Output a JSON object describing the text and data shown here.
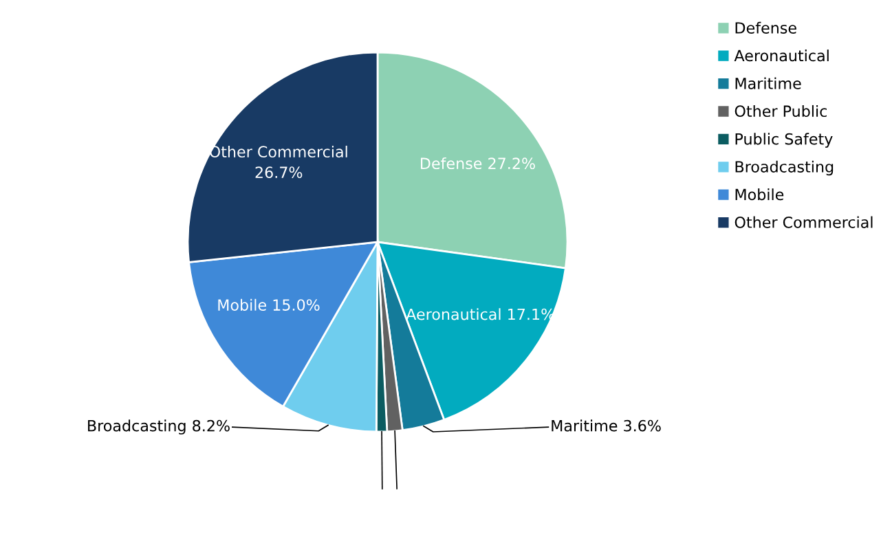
{
  "chart_data": {
    "type": "pie",
    "categories": [
      "Defense",
      "Aeronautical",
      "Maritime",
      "Other Public",
      "Public Safety",
      "Broadcasting",
      "Mobile",
      "Other Commercial"
    ],
    "values": [
      27.2,
      17.1,
      3.6,
      1.3,
      0.9,
      8.2,
      15.0,
      26.7
    ],
    "colors": [
      "#8dd1b3",
      "#02abbf",
      "#147b9a",
      "#616161",
      "#0b5c61",
      "#6fcdee",
      "#3f89d8",
      "#183a64"
    ],
    "value_labels": [
      "27.2%",
      "17.1%",
      "3.6%",
      null,
      null,
      "8.2%",
      "15.0%",
      "26.7%"
    ],
    "legend": "top right"
  }
}
